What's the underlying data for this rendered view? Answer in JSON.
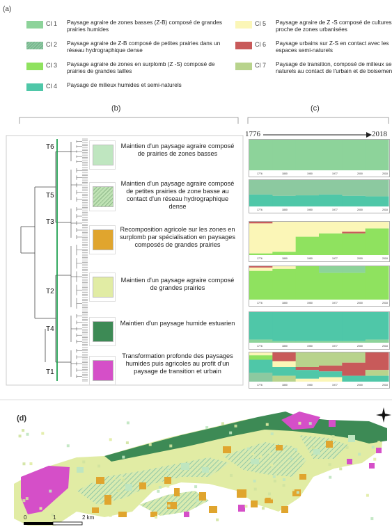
{
  "panels": {
    "a": "(a)",
    "b": "(b)",
    "c": "(c)",
    "d": "(d)"
  },
  "legend": [
    {
      "code": "Cl 1",
      "text": "Paysage agraire de zones basses (Z-B) composé de grandes prairies humides",
      "color": "#8dd39a",
      "hatched": false
    },
    {
      "code": "Cl 2",
      "text": "Paysage agraire de Z-B composé de petites prairies dans un réseau hydrographique dense",
      "color": "#8cc9a0",
      "hatched": true
    },
    {
      "code": "Cl 3",
      "text": "Paysage agraire de zones en surplomb (Z -S) composé de prairies de grandes tailles",
      "color": "#8fe25f",
      "hatched": false
    },
    {
      "code": "Cl 4",
      "text": "Paysage de milieux humides et semi-naturels",
      "color": "#4fc7a8",
      "hatched": false
    },
    {
      "code": "Cl 5",
      "text": "Paysage agraire de Z -S composé de cultures proche de zones urbanisées",
      "color": "#fbf6b7",
      "hatched": false
    },
    {
      "code": "Cl 6",
      "text": "Paysage urbains sur Z-S en contact avec les espaces semi-naturels",
      "color": "#c85a5a",
      "hatched": false
    },
    {
      "code": "Cl 7",
      "text": "Paysage de transition, composé de milieux semi-naturels au contact de l'urbain et de boisements",
      "color": "#b8d38c",
      "hatched": false
    }
  ],
  "trajectories": [
    {
      "id": "T6",
      "text": "Maintien d'un paysage agraire composé de prairies de zones basses",
      "color": "#bfe6c0",
      "hatched": false
    },
    {
      "id": "T5",
      "text": "Maintien d'un paysage agraire composé de petites prairies de zone basse au contact d'un réseau hydrographique dense",
      "color": "#bfe2b4",
      "hatched": true
    },
    {
      "id": "T3",
      "text": "Recomposition agricole sur les zones en surplomb par spécialisation en paysages composés de grandes prairies",
      "color": "#e0a52e",
      "hatched": false
    },
    {
      "id": "T2",
      "text": "Maintien d'un paysage agraire composé de grandes prairies",
      "color": "#e1eca4",
      "hatched": false
    },
    {
      "id": "T4",
      "text": "Maintien d'un paysage humide estuarien",
      "color": "#3d8a55",
      "hatched": false
    },
    {
      "id": "T1",
      "text": "Transformation profonde des paysages humides puis agricoles au profit d'un paysage de transition et urbain",
      "color": "#d54fc8",
      "hatched": false
    }
  ],
  "timeline": {
    "start": "1776",
    "end": "2018"
  },
  "mini_axis_ticks": [
    "1776",
    "1850",
    "1950",
    "1977",
    "2000",
    "2018"
  ],
  "map": {
    "scale_0": "0",
    "scale_1": "1",
    "scale_2": "2 km",
    "north_icon": "compass-star-icon"
  }
}
